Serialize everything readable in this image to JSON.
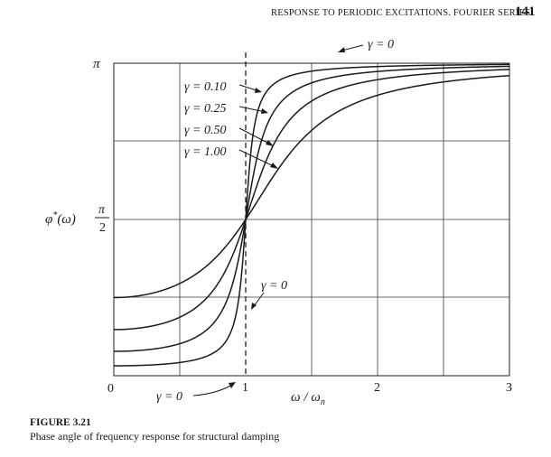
{
  "header": {
    "running_head": "RESPONSE TO PERIODIC EXCITATIONS. FOURIER SERIES",
    "page_number": "141"
  },
  "figure": {
    "label": "FIGURE 3.21",
    "caption": "Phase angle of frequency response for structural damping"
  },
  "chart_data": {
    "type": "line",
    "xlabel": "ω / ωn",
    "ylabel": "φ*(ω)",
    "xlim": [
      0,
      3
    ],
    "ylim": [
      0,
      3.14159
    ],
    "x_ticks": [
      "0",
      "1",
      "2",
      "3"
    ],
    "y_ticks": [
      {
        "value": 1.5708,
        "label_num": "π",
        "label_den": "2"
      },
      {
        "value": 3.14159,
        "label": "π"
      }
    ],
    "grid": true,
    "resonance_line": {
      "x": 1,
      "label": "γ = 0",
      "style": "dashed"
    },
    "series": [
      {
        "name": "γ = 0.10",
        "gamma": 0.1
      },
      {
        "name": "γ = 0.25",
        "gamma": 0.25
      },
      {
        "name": "γ = 0.50",
        "gamma": 0.5
      },
      {
        "name": "γ = 1.00",
        "gamma": 1.0
      }
    ],
    "annotations": [
      "γ = 0",
      "γ = 0",
      "γ = 0"
    ]
  }
}
